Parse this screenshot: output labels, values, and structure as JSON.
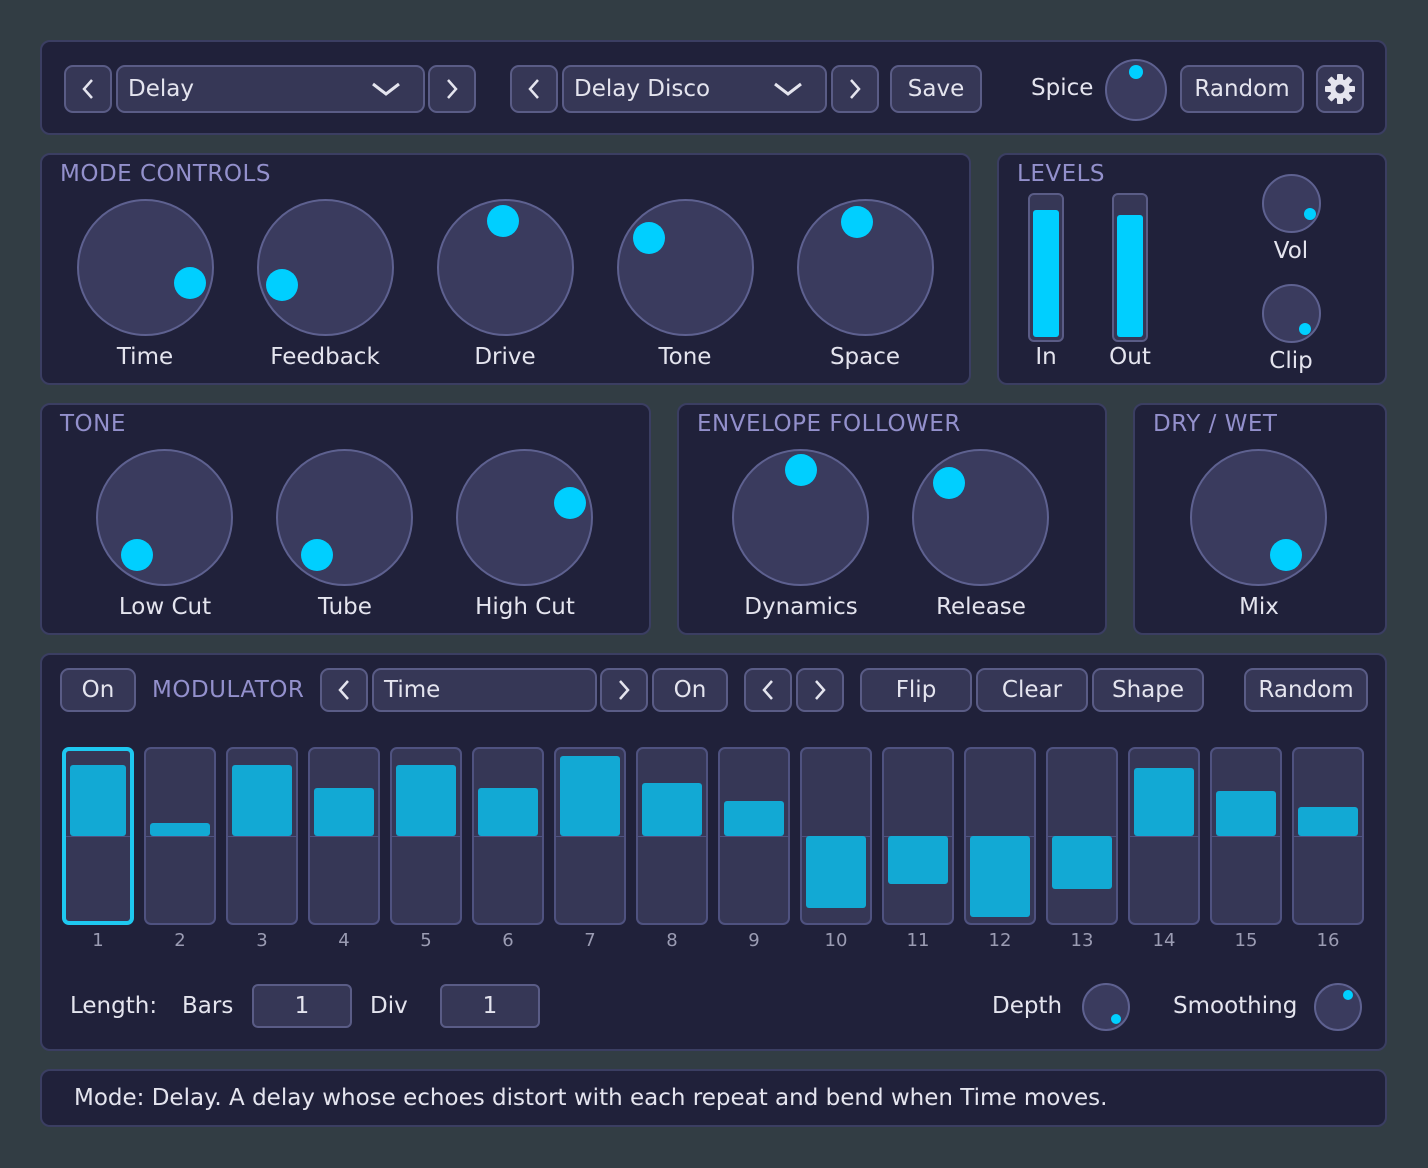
{
  "header": {
    "mode_select": "Delay",
    "preset_select": "Delay Disco",
    "save_label": "Save",
    "spice_label": "Spice",
    "random_label": "Random"
  },
  "mode_controls": {
    "title": "MODE CONTROLS",
    "knobs": [
      {
        "label": "Time"
      },
      {
        "label": "Feedback"
      },
      {
        "label": "Drive"
      },
      {
        "label": "Tone"
      },
      {
        "label": "Space"
      }
    ]
  },
  "levels": {
    "title": "LEVELS",
    "in_label": "In",
    "out_label": "Out",
    "vol_label": "Vol",
    "clip_label": "Clip"
  },
  "tone": {
    "title": "TONE",
    "knobs": [
      {
        "label": "Low Cut"
      },
      {
        "label": "Tube"
      },
      {
        "label": "High Cut"
      }
    ]
  },
  "envelope": {
    "title": "ENVELOPE FOLLOWER",
    "knobs": [
      {
        "label": "Dynamics"
      },
      {
        "label": "Release"
      }
    ]
  },
  "drywet": {
    "title": "DRY / WET",
    "mix_label": "Mix"
  },
  "modulator": {
    "on_label": "On",
    "title": "MODULATOR",
    "target": "Time",
    "target_on_label": "On",
    "flip_label": "Flip",
    "clear_label": "Clear",
    "shape_label": "Shape",
    "random_label": "Random",
    "step_numbers": [
      "1",
      "2",
      "3",
      "4",
      "5",
      "6",
      "7",
      "8",
      "9",
      "10",
      "11",
      "12",
      "13",
      "14",
      "15",
      "16"
    ],
    "step_values": [
      0.85,
      0.15,
      0.85,
      0.57,
      0.85,
      0.57,
      0.95,
      0.63,
      0.42,
      -0.86,
      -0.57,
      -0.97,
      -0.63,
      0.81,
      0.53,
      0.35
    ],
    "active_step": "1",
    "length_label": "Length:",
    "bars_label": "Bars",
    "bars_value": "1",
    "div_label": "Div",
    "div_value": "1",
    "depth_label": "Depth",
    "smoothing_label": "Smoothing"
  },
  "status": {
    "text": "Mode: Delay. A delay whose echoes distort with each repeat and bend when Time moves."
  },
  "colors": {
    "accent": "#00cfff",
    "panel": "#20213a",
    "background": "#323d44",
    "title": "#9390cc"
  }
}
